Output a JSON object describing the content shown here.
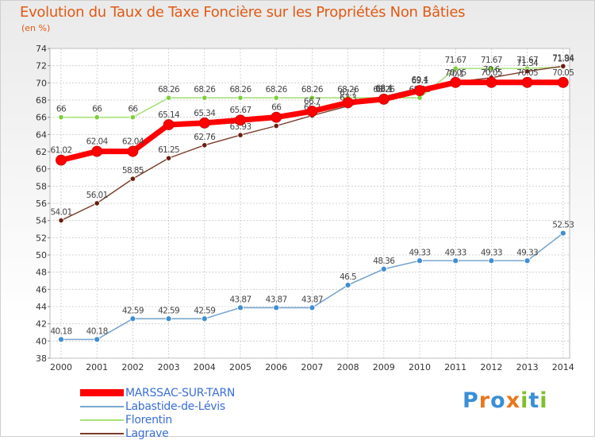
{
  "header": {
    "title": "Evolution du Taux de Taxe Foncière sur les Propriétés Non Bâties",
    "subtitle": "(en %)"
  },
  "chart_data": {
    "type": "line",
    "title": "Evolution du Taux de Taxe Foncière sur les Propriétés Non Bâties",
    "ylabel": "(en %)",
    "xlabel": "",
    "x": [
      2000,
      2001,
      2002,
      2003,
      2004,
      2005,
      2006,
      2007,
      2008,
      2009,
      2010,
      2011,
      2012,
      2013,
      2014
    ],
    "x_labels": [
      "2000",
      "2001",
      "2002",
      "2003",
      "2004",
      "2005",
      "2006",
      "2007",
      "2008",
      "2009",
      "2010",
      "2011",
      "2012",
      "2013",
      "2014"
    ],
    "ylim": [
      38,
      74
    ],
    "yticks": [
      38,
      40,
      42,
      44,
      46,
      48,
      50,
      52,
      54,
      56,
      58,
      60,
      62,
      64,
      66,
      68,
      70,
      72,
      74
    ],
    "ytick_labels": [
      "38",
      "40",
      "42",
      "44",
      "46",
      "48",
      "50",
      "52",
      "54",
      "56",
      "58",
      "60",
      "62",
      "64",
      "66",
      "68",
      "70",
      "72",
      "74"
    ],
    "grid": true,
    "legend_position": "bottom-left",
    "series": [
      {
        "name": "Labastide-de-Lévis",
        "color": "#7aa6cf",
        "marker_color": "#3f8fd0",
        "values": [
          40.18,
          40.18,
          42.59,
          42.59,
          42.59,
          43.87,
          43.87,
          43.87,
          46.5,
          48.36,
          49.33,
          49.33,
          49.33,
          49.33,
          52.53
        ],
        "labels": [
          "40.18",
          "40.18",
          "42.59",
          "42.59",
          "42.59",
          "43.87",
          "43.87",
          "43.87",
          "46.5",
          "48.36",
          "49.33",
          "49.33",
          "49.33",
          "49.33",
          "52.53"
        ]
      },
      {
        "name": "Florentin",
        "color": "#a8e07a",
        "marker_color": "#7ccf3a",
        "values": [
          66,
          66,
          66,
          68.26,
          68.26,
          68.26,
          68.26,
          68.26,
          68.26,
          68.26,
          68.26,
          71.67,
          71.67,
          71.67,
          71.84
        ],
        "labels": [
          "66",
          "66",
          "66",
          "68.26",
          "68.26",
          "68.26",
          "68.26",
          "68.26",
          "68.26",
          "68.26",
          "68.26",
          "71.67",
          "71.67",
          "71.67",
          "71.84"
        ]
      },
      {
        "name": "Lagrave",
        "color": "#7a3b2a",
        "marker_color": "#6a1f10",
        "values": [
          54.01,
          56.01,
          58.85,
          61.25,
          62.76,
          63.93,
          65,
          66.2,
          67.3,
          68.4,
          69.4,
          70.1,
          70.6,
          71.34,
          71.94
        ],
        "labels": [
          "54.01",
          "56.01",
          "58.85",
          "61.25",
          "62.76",
          "63.93",
          "65",
          "66.2",
          "67.3",
          "68.4",
          "69.4",
          "70.1",
          "70.6",
          "71.34",
          "71.94"
        ]
      },
      {
        "name": "MARSSAC-SUR-TARN",
        "color": "#ff0000",
        "marker_color": "#ff0000",
        "values": [
          61.02,
          62.04,
          62.04,
          65.14,
          65.34,
          65.67,
          66,
          66.7,
          67.7,
          68.1,
          69.1,
          70.05,
          70.05,
          70.05,
          70.05
        ],
        "labels": [
          "61.02",
          "62.04",
          "62.04",
          "65.14",
          "65.34",
          "65.67",
          "66",
          "66.7",
          "67.7",
          "68.1",
          "69.1",
          "70.05",
          "70.05",
          "70.05",
          "70.05"
        ]
      }
    ]
  },
  "legend": {
    "items": [
      {
        "label": "MARSSAC-SUR-TARN",
        "color": "#ff0000"
      },
      {
        "label": "Labastide-de-Lévis",
        "color": "#7aa6cf"
      },
      {
        "label": "Florentin",
        "color": "#a8e07a"
      },
      {
        "label": "Lagrave",
        "color": "#7a3b2a"
      }
    ]
  },
  "logo": {
    "text": "Proxiti",
    "letters": [
      "P",
      "r",
      "o",
      "x",
      "i",
      "t",
      "i"
    ],
    "colors": [
      "#3a8fd6",
      "#e8781e",
      "#3a8fd6",
      "#e8781e",
      "#7fbf2a",
      "#3a8fd6",
      "#7fbf2a"
    ]
  }
}
